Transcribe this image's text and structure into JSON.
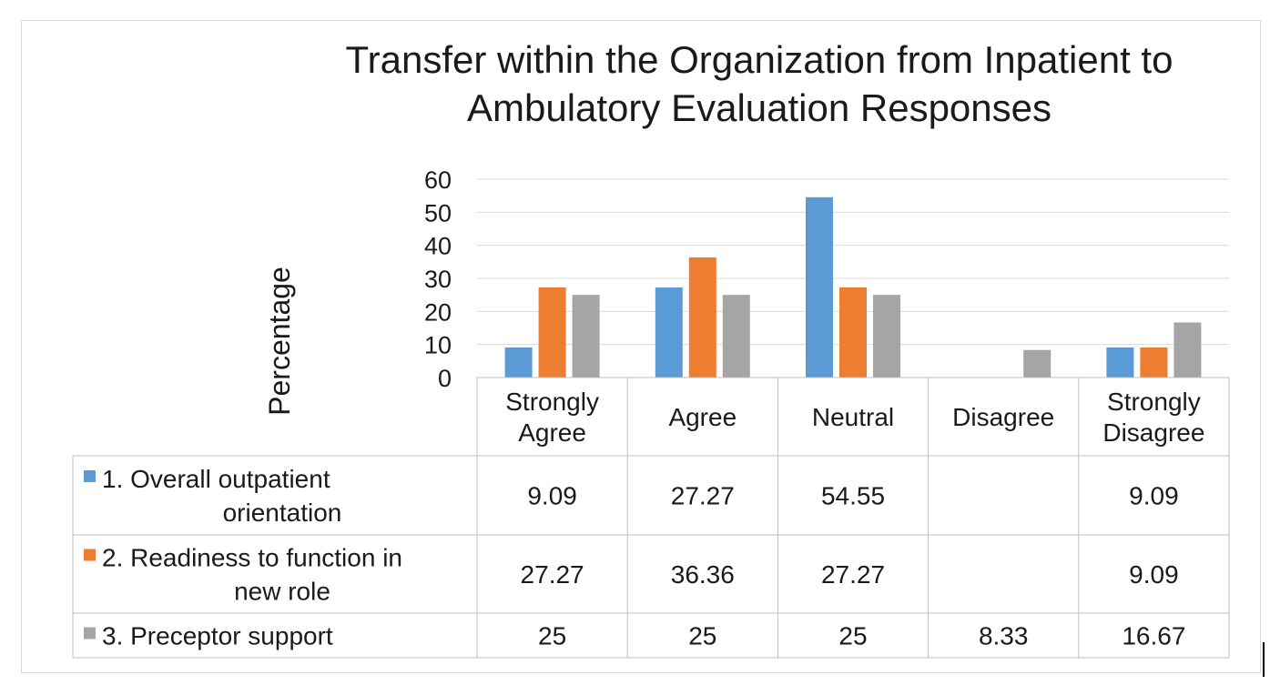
{
  "chart_data": {
    "type": "bar",
    "title_line1": "Transfer within the Organization from Inpatient to",
    "title_line2": "Ambulatory Evaluation Responses",
    "ylabel": "Percentage",
    "ylim": [
      0,
      60
    ],
    "yticks": [
      "0",
      "10",
      "20",
      "30",
      "40",
      "50",
      "60"
    ],
    "grid": true,
    "legend": "data-table",
    "categories": [
      [
        "Strongly",
        "Agree"
      ],
      [
        "Agree"
      ],
      [
        "Neutral"
      ],
      [
        "Disagree"
      ],
      [
        "Strongly",
        "Disagree"
      ]
    ],
    "series": [
      {
        "name_lines": [
          "1.  Overall outpatient",
          "orientation"
        ],
        "color": "#5b9bd5",
        "values": [
          9.09,
          27.27,
          54.55,
          null,
          9.09
        ],
        "labels": [
          "9.09",
          "27.27",
          "54.55",
          "",
          "9.09"
        ]
      },
      {
        "name_lines": [
          "2.  Readiness to function in",
          "new role"
        ],
        "color": "#ed7d31",
        "values": [
          27.27,
          36.36,
          27.27,
          null,
          9.09
        ],
        "labels": [
          "27.27",
          "36.36",
          "27.27",
          "",
          "9.09"
        ]
      },
      {
        "name_lines": [
          "3.  Preceptor support"
        ],
        "color": "#a5a5a5",
        "values": [
          25,
          25,
          25,
          8.33,
          16.67
        ],
        "labels": [
          "25",
          "25",
          "25",
          "8.33",
          "16.67"
        ]
      }
    ]
  }
}
